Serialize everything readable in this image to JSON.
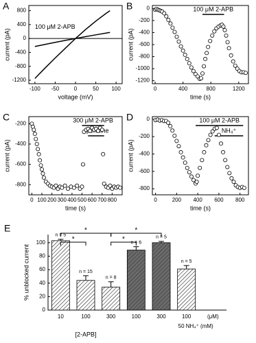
{
  "chart_data": [
    {
      "type": "line",
      "label": "A",
      "xlabel": "voltage (mV)",
      "ylabel": "current (pA)",
      "annotation": "100 μM 2-APB",
      "x": [
        -100,
        -75,
        -50,
        -25,
        0,
        25,
        50,
        75,
        85
      ],
      "series": [
        {
          "color": "#000000",
          "values": [
            -1150,
            -850,
            -560,
            -280,
            0,
            260,
            500,
            720,
            800
          ]
        },
        {
          "color": "#000000",
          "values": [
            -230,
            -170,
            -110,
            -55,
            0,
            55,
            105,
            155,
            175
          ]
        }
      ],
      "xlim": [
        -115,
        115
      ],
      "xticks": [
        -100,
        -50,
        0,
        50,
        100
      ],
      "ylim": [
        -1300,
        950
      ],
      "yticks": [
        -1200,
        -800,
        -400,
        0,
        400,
        800
      ],
      "zero_line": true
    },
    {
      "type": "scatter",
      "label": "B",
      "xlabel": "time (s)",
      "ylabel": "current (pA)",
      "annotations": [
        {
          "text": "100 μM 2-APB",
          "start": 680,
          "end": 990
        }
      ],
      "x": [
        0,
        20,
        40,
        60,
        80,
        100,
        130,
        160,
        190,
        220,
        250,
        280,
        310,
        340,
        370,
        400,
        430,
        460,
        490,
        520,
        550,
        580,
        610,
        640,
        660,
        680,
        700,
        720,
        740,
        760,
        790,
        820,
        850,
        880,
        910,
        940,
        960,
        980,
        1000,
        1020,
        1040,
        1060,
        1090,
        1120,
        1150,
        1180,
        1210,
        1240,
        1270,
        1300
      ],
      "values": [
        -20,
        -10,
        -20,
        -30,
        -40,
        -50,
        -80,
        -130,
        -190,
        -250,
        -320,
        -390,
        -470,
        -550,
        -630,
        -700,
        -770,
        -840,
        -910,
        -980,
        -1040,
        -1090,
        -1130,
        -1170,
        -1160,
        -1080,
        -960,
        -840,
        -740,
        -640,
        -540,
        -450,
        -380,
        -330,
        -300,
        -280,
        -270,
        -300,
        -360,
        -450,
        -560,
        -660,
        -780,
        -880,
        -950,
        -1000,
        -1040,
        -1060,
        -1060,
        -1070
      ],
      "color": "#000000",
      "xlim": [
        -40,
        1340
      ],
      "xticks": [
        0,
        400,
        800,
        1200
      ],
      "ylim": [
        -1250,
        50
      ],
      "yticks": [
        -1200,
        -1000,
        -800,
        -600,
        -400,
        -200,
        0
      ]
    },
    {
      "type": "scatter",
      "label": "C",
      "xlabel": "time (s)",
      "ylabel": "current (pA)",
      "annotations": [
        {
          "text": "300 μM 2-APB",
          "start": 500,
          "end": 720
        },
        {
          "text": "spermine",
          "start": 560,
          "end": 720
        }
      ],
      "x": [
        0,
        10,
        20,
        30,
        40,
        50,
        60,
        70,
        80,
        90,
        100,
        110,
        120,
        140,
        160,
        180,
        200,
        220,
        240,
        260,
        280,
        300,
        330,
        360,
        390,
        420,
        450,
        480,
        500,
        510,
        520,
        540,
        560,
        580,
        600,
        620,
        640,
        660,
        680,
        700,
        710,
        720,
        740,
        760,
        780,
        800,
        820,
        840,
        860,
        880
      ],
      "values": [
        -200,
        -230,
        -260,
        -300,
        -350,
        -400,
        -450,
        -500,
        -560,
        -610,
        -650,
        -690,
        -730,
        -770,
        -790,
        -810,
        -820,
        -830,
        -810,
        -840,
        -820,
        -830,
        -810,
        -840,
        -820,
        -830,
        -810,
        -840,
        -820,
        -600,
        -280,
        -260,
        -250,
        -270,
        -240,
        -260,
        -250,
        -270,
        -240,
        -260,
        -500,
        -790,
        -820,
        -830,
        -810,
        -840,
        -820,
        -830,
        -820,
        -830
      ],
      "color": "#000000",
      "xlim": [
        -30,
        900
      ],
      "xticks": [
        0,
        100,
        200,
        300,
        400,
        500,
        600,
        700,
        800
      ],
      "ylim": [
        -900,
        -130
      ],
      "yticks": [
        -800,
        -600,
        -400,
        -200
      ]
    },
    {
      "type": "scatter",
      "label": "D",
      "xlabel": "time (s)",
      "ylabel": "current (pA)",
      "annotations": [
        {
          "text": "100 μM 2-APB",
          "start": 380,
          "end": 830
        },
        {
          "text": "NH₄⁺",
          "start": 560,
          "end": 830
        }
      ],
      "x": [
        0,
        20,
        40,
        60,
        80,
        100,
        120,
        140,
        160,
        180,
        200,
        220,
        240,
        260,
        280,
        300,
        320,
        340,
        360,
        380,
        390,
        400,
        420,
        440,
        460,
        480,
        500,
        520,
        540,
        560,
        580,
        600,
        620,
        640,
        660,
        680,
        700,
        720,
        740,
        760,
        780,
        800,
        820,
        840
      ],
      "values": [
        -10,
        -5,
        -15,
        -10,
        -20,
        -20,
        -40,
        -80,
        -130,
        -190,
        -250,
        -310,
        -380,
        -440,
        -500,
        -560,
        -610,
        -660,
        -700,
        -740,
        -720,
        -650,
        -560,
        -470,
        -380,
        -300,
        -240,
        -180,
        -140,
        -110,
        -100,
        -180,
        -280,
        -380,
        -470,
        -550,
        -620,
        -680,
        -720,
        -760,
        -780,
        -790,
        -780,
        -790
      ],
      "color": "#000000",
      "xlim": [
        -30,
        880
      ],
      "xticks": [
        0,
        200,
        400,
        600,
        800
      ],
      "ylim": [
        -870,
        30
      ],
      "yticks": [
        -800,
        -600,
        -400,
        -200,
        0
      ]
    },
    {
      "type": "bar",
      "label": "E",
      "ylabel": "% unblocked current",
      "xlabel": "[2-APB]",
      "unit_label": "(μM)",
      "nh4_label": "50 NH₄⁺ (mM)",
      "categories": [
        "10",
        "100",
        "300",
        "100",
        "300",
        "100"
      ],
      "values": [
        103,
        44,
        34,
        89,
        100,
        61
      ],
      "errors": [
        2,
        7,
        8,
        5,
        2,
        5
      ],
      "bar_styles": [
        "hatch",
        "hatch",
        "hatch",
        "dark",
        "dark",
        "hatch"
      ],
      "n_labels": [
        "n = 5",
        "n = 15",
        "n = 8",
        "n = 6",
        "n = 5",
        "n = 5"
      ],
      "significance_labels": [
        "*",
        "*",
        "*",
        "*"
      ],
      "ylim": [
        0,
        112
      ],
      "yticks": [
        0,
        20,
        40,
        60,
        80,
        100
      ]
    }
  ]
}
